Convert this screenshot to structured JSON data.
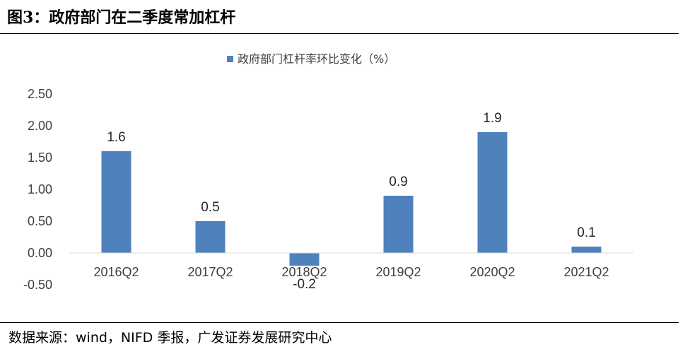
{
  "figure": {
    "title": "图3：政府部门在二季度常加杠杆",
    "source": "数据来源：wind，NIFD 季报，广发证券发展研究中心"
  },
  "chart_data": {
    "type": "bar",
    "title": "",
    "xlabel": "",
    "ylabel": "",
    "categories": [
      "2016Q2",
      "2017Q2",
      "2018Q2",
      "2019Q2",
      "2020Q2",
      "2021Q2"
    ],
    "series": [
      {
        "name": "政府部门杠杆率环比变化（%）",
        "values": [
          1.6,
          0.5,
          -0.2,
          0.9,
          1.9,
          0.1
        ],
        "labels": [
          "1.6",
          "0.5",
          "-0.2",
          "0.9",
          "1.9",
          "0.1"
        ],
        "color": "#4F81BD"
      }
    ],
    "yticks": [
      "2.50",
      "2.00",
      "1.50",
      "1.00",
      "0.50",
      "0.00",
      "-0.50"
    ],
    "ytick_values": [
      2.5,
      2.0,
      1.5,
      1.0,
      0.5,
      0.0,
      -0.5
    ],
    "ylim": [
      -0.5,
      2.5
    ],
    "grid": false,
    "legend_position": "top-center"
  }
}
